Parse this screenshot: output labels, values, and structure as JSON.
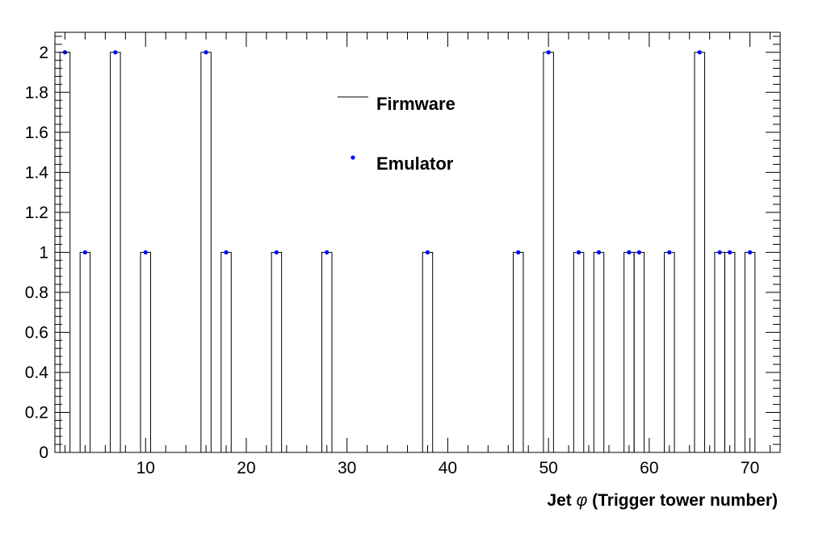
{
  "chart_data": {
    "type": "bar",
    "title": "",
    "xlabel_parts": {
      "before": "Jet ",
      "symbol": "φ",
      "after": " (Trigger tower number)"
    },
    "ylabel": "",
    "xlim": [
      1,
      73
    ],
    "ylim": [
      0,
      2.1
    ],
    "x_ticks": [
      10,
      20,
      30,
      40,
      50,
      60,
      70
    ],
    "y_ticks": [
      0,
      0.2,
      0.4,
      0.6,
      0.8,
      1,
      1.2,
      1.4,
      1.6,
      1.8,
      2
    ],
    "y_tick_labels": [
      "0",
      "0.2",
      "0.4",
      "0.6",
      "0.8",
      "1",
      "1.2",
      "1.4",
      "1.6",
      "1.8",
      "2"
    ],
    "grid": false,
    "legend_position": "top-center",
    "series": [
      {
        "name": "Firmware",
        "style": "histogram",
        "color": "#000000",
        "bins": [
          {
            "x": 2,
            "value": 2
          },
          {
            "x": 4,
            "value": 1
          },
          {
            "x": 7,
            "value": 2
          },
          {
            "x": 10,
            "value": 1
          },
          {
            "x": 16,
            "value": 2
          },
          {
            "x": 18,
            "value": 1
          },
          {
            "x": 23,
            "value": 1
          },
          {
            "x": 28,
            "value": 1
          },
          {
            "x": 38,
            "value": 1
          },
          {
            "x": 47,
            "value": 1
          },
          {
            "x": 50,
            "value": 2
          },
          {
            "x": 53,
            "value": 1
          },
          {
            "x": 55,
            "value": 1
          },
          {
            "x": 58,
            "value": 1
          },
          {
            "x": 59,
            "value": 1
          },
          {
            "x": 62,
            "value": 1
          },
          {
            "x": 65,
            "value": 2
          },
          {
            "x": 67,
            "value": 1
          },
          {
            "x": 68,
            "value": 1
          },
          {
            "x": 70,
            "value": 1
          }
        ]
      },
      {
        "name": "Emulator",
        "style": "markers",
        "color": "#0000ff",
        "points": [
          {
            "x": 2,
            "y": 2
          },
          {
            "x": 4,
            "y": 1
          },
          {
            "x": 7,
            "y": 2
          },
          {
            "x": 10,
            "y": 1
          },
          {
            "x": 16,
            "y": 2
          },
          {
            "x": 18,
            "y": 1
          },
          {
            "x": 23,
            "y": 1
          },
          {
            "x": 28,
            "y": 1
          },
          {
            "x": 38,
            "y": 1
          },
          {
            "x": 47,
            "y": 1
          },
          {
            "x": 50,
            "y": 2
          },
          {
            "x": 53,
            "y": 1
          },
          {
            "x": 55,
            "y": 1
          },
          {
            "x": 58,
            "y": 1
          },
          {
            "x": 59,
            "y": 1
          },
          {
            "x": 62,
            "y": 1
          },
          {
            "x": 65,
            "y": 2
          },
          {
            "x": 67,
            "y": 1
          },
          {
            "x": 68,
            "y": 1
          },
          {
            "x": 70,
            "y": 1
          }
        ]
      }
    ]
  }
}
